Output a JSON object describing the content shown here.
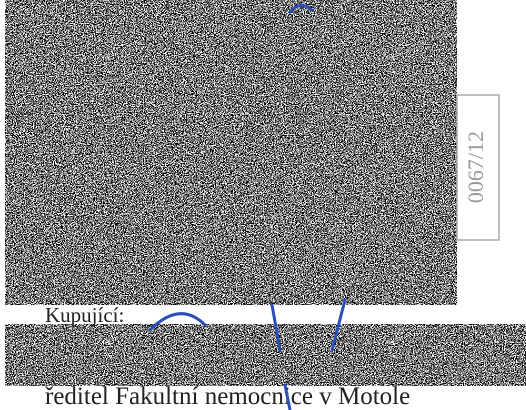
{
  "stamp": "0067/12",
  "buyer_label": "Kupující:",
  "signatory": "ředitel Fakultní nemocnice v Motole"
}
